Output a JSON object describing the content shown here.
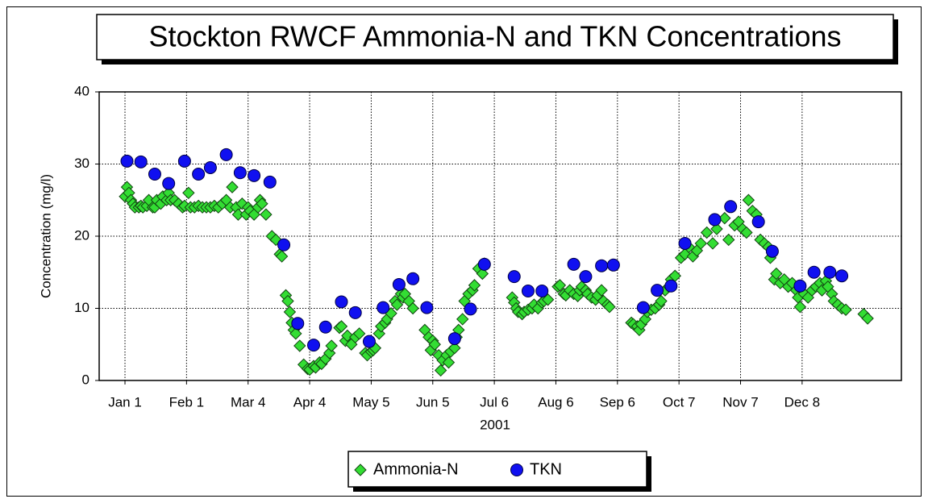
{
  "chart_data": {
    "type": "scatter",
    "title": "Stockton RWCF Ammonia-N and TKN Concentrations",
    "xlabel": "2001",
    "ylabel": "Concentration (mg/l)",
    "xlim": [
      -12,
      392
    ],
    "ylim": [
      0,
      40
    ],
    "xticks": [
      {
        "value": 1,
        "label": "Jan 1"
      },
      {
        "value": 32,
        "label": "Feb 1"
      },
      {
        "value": 63,
        "label": "Mar 4"
      },
      {
        "value": 94,
        "label": "Apr 4"
      },
      {
        "value": 125,
        "label": "May 5"
      },
      {
        "value": 156,
        "label": "Jun 5"
      },
      {
        "value": 187,
        "label": "Jul 6"
      },
      {
        "value": 218,
        "label": "Aug 6"
      },
      {
        "value": 249,
        "label": "Sep 6"
      },
      {
        "value": 280,
        "label": "Oct 7"
      },
      {
        "value": 311,
        "label": "Nov 7"
      },
      {
        "value": 342,
        "label": "Dec 8"
      }
    ],
    "yticks": [
      0,
      10,
      20,
      30,
      40
    ],
    "grid": true,
    "legend": "bottom",
    "series": [
      {
        "name": "Ammonia-N",
        "color": "#33dd33",
        "marker": "diamond",
        "x": [
          1,
          2,
          3,
          4,
          5,
          6,
          8,
          9,
          10,
          12,
          13,
          15,
          16,
          17,
          19,
          20,
          22,
          23,
          24,
          26,
          28,
          30,
          31,
          33,
          34,
          36,
          38,
          40,
          42,
          44,
          46,
          48,
          50,
          52,
          54,
          55,
          57,
          58,
          60,
          62,
          63,
          64,
          66,
          68,
          69,
          70,
          72,
          75,
          77,
          79,
          80,
          82,
          83,
          84,
          85,
          86,
          87,
          89,
          91,
          93,
          94,
          96,
          97,
          99,
          100,
          102,
          104,
          105,
          109,
          110,
          112,
          113,
          115,
          117,
          119,
          122,
          123,
          125,
          126,
          127,
          129,
          130,
          132,
          133,
          135,
          137,
          138,
          140,
          141,
          142,
          144,
          146,
          152,
          154,
          155,
          156,
          157,
          159,
          160,
          161,
          163,
          164,
          165,
          167,
          168,
          169,
          171,
          172,
          174,
          176,
          177,
          179,
          181,
          182,
          196,
          197,
          198,
          199,
          201,
          202,
          204,
          206,
          207,
          209,
          211,
          212,
          214,
          219,
          220,
          222,
          223,
          225,
          227,
          229,
          230,
          231,
          233,
          234,
          236,
          238,
          239,
          241,
          242,
          244,
          245,
          256,
          257,
          259,
          260,
          261,
          263,
          264,
          266,
          268,
          270,
          271,
          273,
          275,
          276,
          278,
          281,
          283,
          285,
          287,
          289,
          291,
          294,
          297,
          299,
          303,
          305,
          308,
          310,
          312,
          314,
          315,
          317,
          319,
          321,
          323,
          325,
          326,
          328,
          329,
          331,
          333,
          335,
          337,
          339,
          340,
          341,
          343,
          345,
          347,
          349,
          351,
          352,
          354,
          355,
          357,
          358,
          360,
          362,
          364,
          373,
          375
        ],
        "values": [
          25.5,
          26.8,
          26,
          25,
          24.5,
          24,
          24,
          24.2,
          24,
          24.2,
          25,
          24,
          24,
          25,
          24.5,
          25.5,
          25,
          26,
          25,
          25,
          24.5,
          24,
          24.2,
          26,
          24,
          24,
          24.2,
          24,
          24,
          24,
          24.2,
          24,
          24.5,
          25,
          24,
          26.8,
          24,
          23,
          24.5,
          23,
          24,
          23.5,
          23,
          24,
          25,
          24.5,
          23,
          20,
          19.5,
          17.5,
          17.2,
          11.8,
          11,
          9.5,
          8,
          7,
          6.5,
          4.8,
          2.2,
          1.6,
          1.5,
          2,
          1.8,
          2.5,
          2.3,
          3,
          3.8,
          4.8,
          7.3,
          7.5,
          5.5,
          6.2,
          5,
          6,
          6.5,
          3.8,
          3.5,
          4,
          4.2,
          4.5,
          6.5,
          7.5,
          8,
          8.5,
          9.3,
          11,
          10.5,
          12,
          11.5,
          12,
          11,
          10,
          7,
          6,
          4.2,
          5.5,
          5,
          3.5,
          1.4,
          2.8,
          3.5,
          2.5,
          4,
          4.5,
          6,
          7,
          8.5,
          11,
          12,
          12.5,
          13.2,
          15.5,
          14.8,
          16.2,
          11.5,
          10.8,
          10,
          9.5,
          9.2,
          9.5,
          9.8,
          10,
          10.5,
          10,
          10.8,
          11,
          11.2,
          13,
          13.2,
          12,
          11.8,
          12.5,
          12,
          11.7,
          12.5,
          13,
          12.5,
          12,
          11.5,
          11.2,
          11.8,
          12.5,
          11,
          10.5,
          10.2,
          8,
          7.8,
          7.5,
          7,
          7.8,
          8.5,
          9.5,
          9.8,
          10,
          10.5,
          11,
          12.5,
          13,
          14,
          14.5,
          17,
          17.5,
          18.5,
          17.2,
          18,
          19,
          20.5,
          19,
          21,
          22.5,
          19.5,
          21.5,
          22,
          21,
          20.5,
          25,
          23.5,
          23,
          19.5,
          19,
          18.5,
          17,
          14,
          14.8,
          13.5,
          14,
          13,
          13.5,
          12.5,
          11.5,
          10.2,
          12,
          11.5,
          12.5,
          13,
          13.5,
          12.5,
          13.8,
          13,
          12,
          11,
          10.5,
          10,
          9.8,
          9.2,
          8.6
        ]
      },
      {
        "name": "TKN",
        "color": "#1010f0",
        "marker": "circle",
        "x": [
          2,
          9,
          16,
          23,
          31,
          38,
          44,
          52,
          59,
          66,
          74,
          81,
          88,
          96,
          102,
          110,
          117,
          124,
          131,
          139,
          146,
          153,
          167,
          175,
          182,
          197,
          204,
          211,
          227,
          233,
          241,
          247,
          262,
          269,
          276,
          283,
          298,
          306,
          320,
          327,
          341,
          348,
          356,
          362
        ],
        "values": [
          30.4,
          30.3,
          28.6,
          27.3,
          30.4,
          28.6,
          29.5,
          31.3,
          28.8,
          28.4,
          27.5,
          18.8,
          7.9,
          4.9,
          7.4,
          10.9,
          9.4,
          5.4,
          10.1,
          13.3,
          14.1,
          10.1,
          5.8,
          9.9,
          16.1,
          14.4,
          12.4,
          12.4,
          16.1,
          14.4,
          15.9,
          16,
          10.1,
          12.5,
          13.1,
          19,
          22.3,
          24.1,
          22,
          17.9,
          13.1,
          15,
          15,
          14.5
        ]
      }
    ]
  }
}
